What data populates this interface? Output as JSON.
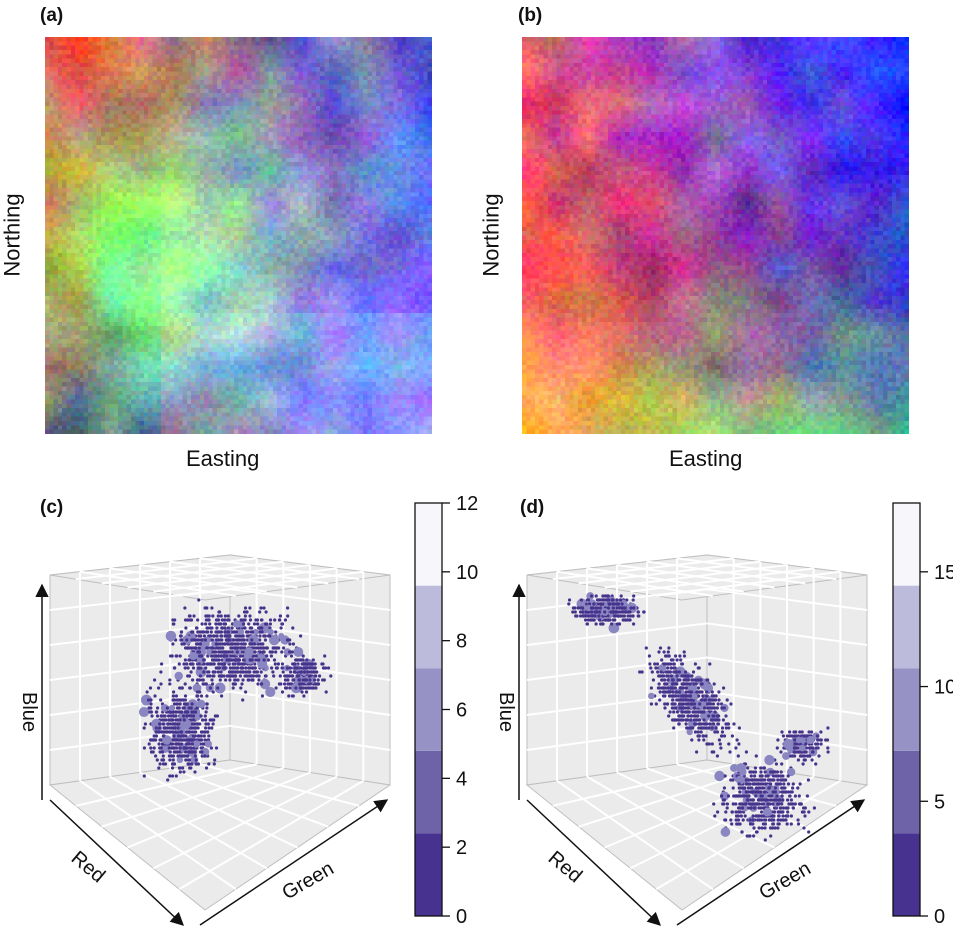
{
  "panels": {
    "a": {
      "label": "(a)",
      "xlabel": "Easting",
      "ylabel": "Northing"
    },
    "b": {
      "label": "(b)",
      "xlabel": "Easting",
      "ylabel": "Northing"
    },
    "c": {
      "label": "(c)",
      "axis_labels": {
        "x": "Red",
        "y": "Green",
        "z": "Blue"
      }
    },
    "d": {
      "label": "(d)",
      "axis_labels": {
        "x": "Red",
        "y": "Green",
        "z": "Blue"
      }
    }
  },
  "colors": {
    "point_dark": "#46338c",
    "point_light": "#8a86c2",
    "cube_face": "#ebebeb",
    "grid": "#ffffff",
    "scale_levels": [
      "#48328f",
      "#6e62a8",
      "#9692c5",
      "#bdbbdc",
      "#f7f7fb"
    ]
  },
  "chart_data": [
    {
      "panel": "a",
      "type": "heatmap",
      "title": "",
      "xlabel": "Easting",
      "ylabel": "Northing",
      "description_colors": [
        "red/magenta top-left",
        "green centre",
        "blue right",
        "purple lower"
      ]
    },
    {
      "panel": "b",
      "type": "heatmap",
      "title": "",
      "xlabel": "Easting",
      "ylabel": "Northing"
    },
    {
      "panel": "c",
      "type": "scatter",
      "title": "",
      "axes": {
        "x": "Red",
        "y": "Green",
        "z": "Blue"
      },
      "colorbar": {
        "ticks": [
          0,
          2,
          4,
          6,
          8,
          10,
          12
        ],
        "range": [
          0,
          12
        ]
      }
    },
    {
      "panel": "d",
      "type": "scatter",
      "title": "",
      "axes": {
        "x": "Red",
        "y": "Green",
        "z": "Blue"
      },
      "colorbar": {
        "ticks": [
          0,
          5,
          10,
          15
        ],
        "range": [
          0,
          18
        ]
      }
    }
  ]
}
